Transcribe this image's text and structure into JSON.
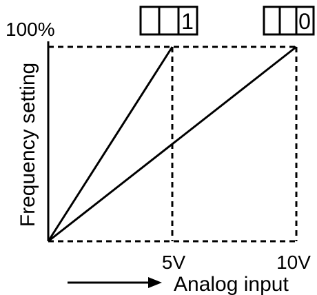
{
  "chart_data": {
    "type": "line",
    "title": "",
    "xlabel": "Analog input",
    "ylabel": "Frequency setting",
    "x_tick_labels": [
      "5V",
      "10V"
    ],
    "y_tick_labels": [
      "100%"
    ],
    "xlim": [
      0,
      10
    ],
    "ylim": [
      0,
      100
    ],
    "grid": false,
    "series": [
      {
        "points": [
          [
            0,
            0
          ],
          [
            5,
            100
          ]
        ],
        "box_digits": [
          "",
          "",
          "1"
        ]
      },
      {
        "points": [
          [
            0,
            0
          ],
          [
            10,
            100
          ]
        ],
        "box_digits": [
          "",
          "",
          "0"
        ]
      }
    ]
  },
  "colors": {
    "ink": "#000000",
    "background": "#ffffff"
  },
  "icons": {
    "arrow": "right-arrow-icon"
  }
}
